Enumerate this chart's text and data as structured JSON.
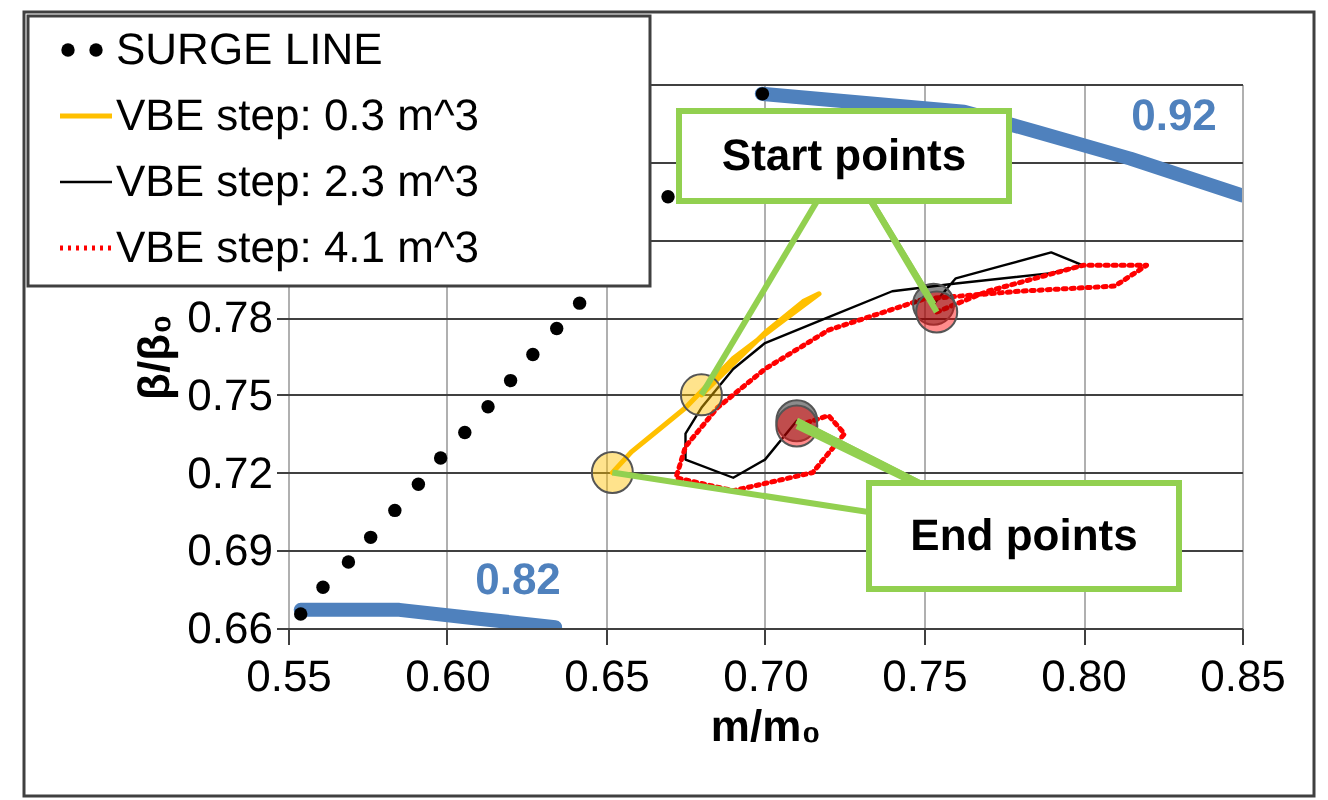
{
  "chart_data": {
    "type": "line",
    "xlabel": "m/m₀",
    "ylabel": "β/β₀",
    "xlim": [
      0.55,
      0.85
    ],
    "ylim": [
      0.66,
      0.87
    ],
    "xticks": [
      0.55,
      {
        "value": 0.6,
        "label": "0.60"
      },
      0.65,
      {
        "value": 0.7,
        "label": "0.70"
      },
      0.75,
      {
        "value": 0.8,
        "label": "0.80"
      },
      0.85
    ],
    "yticks": [
      0.66,
      0.69,
      0.72,
      0.75,
      0.78,
      {
        "value": 0.81,
        "label": null
      },
      {
        "value": 0.84,
        "label": null
      },
      {
        "value": 0.87,
        "label": null
      }
    ],
    "grid": true,
    "legend": "top left",
    "series": [
      {
        "type": "line",
        "color": "#4f81bd",
        "x": [
          0.554,
          0.585,
          0.61,
          0.634
        ],
        "values": [
          0.667,
          0.667,
          0.6636,
          0.6603
        ]
      },
      {
        "type": "line",
        "color": "#4f81bd",
        "x": [
          0.699,
          0.7626,
          0.7856,
          0.8149,
          0.85
        ],
        "values": [
          0.8662,
          0.8593,
          0.8515,
          0.8412,
          0.827
        ]
      },
      {
        "type": "scatter",
        "name": "SURGE LINE",
        "color": "#000000",
        "marker": "circle",
        "x": [
          0.554,
          0.561,
          0.569,
          0.576,
          0.5836,
          0.591,
          0.598,
          0.6056,
          0.6129,
          0.62,
          0.627,
          0.6345,
          0.6417,
          0.6695,
          0.6992
        ],
        "values": [
          0.6654,
          0.6757,
          0.6855,
          0.695,
          0.7054,
          0.7155,
          0.7256,
          0.7355,
          0.7454,
          0.7555,
          0.7656,
          0.7756,
          0.7854,
          0.8265,
          0.8662
        ]
      },
      {
        "type": "line",
        "name": "VBE step: 0.3 m^3",
        "color": "#ffc000",
        "line_style": "solid",
        "marker": "none",
        "x": [
          0.68,
          0.69,
          0.7,
          0.712,
          0.717,
          0.705,
          0.69,
          0.675,
          0.665,
          0.658,
          0.652
        ],
        "values": [
          0.75,
          0.762,
          0.774,
          0.786,
          0.789,
          0.778,
          0.764,
          0.745,
          0.735,
          0.728,
          0.72
        ]
      },
      {
        "type": "line",
        "name": "VBE step: 2.3 m^3",
        "color": "#000000",
        "line_style": "solid",
        "marker": "none",
        "x": [
          0.753,
          0.76,
          0.775,
          0.79,
          0.8,
          0.79,
          0.76,
          0.74,
          0.72,
          0.7,
          0.69,
          0.68,
          0.675,
          0.675,
          0.69,
          0.7,
          0.71
        ],
        "values": [
          0.785,
          0.795,
          0.8,
          0.805,
          0.8,
          0.797,
          0.793,
          0.79,
          0.78,
          0.77,
          0.76,
          0.745,
          0.735,
          0.725,
          0.718,
          0.725,
          0.74
        ]
      },
      {
        "type": "line",
        "name": "VBE step: 4.1 m^3",
        "color": "#ff0000",
        "line_style": "dotted",
        "marker": "none",
        "x": [
          0.754,
          0.77,
          0.8,
          0.82,
          0.81,
          0.78,
          0.75,
          0.72,
          0.7,
          0.685,
          0.675,
          0.672,
          0.69,
          0.715,
          0.725,
          0.72,
          0.71
        ],
        "values": [
          0.782,
          0.79,
          0.8,
          0.8,
          0.792,
          0.79,
          0.787,
          0.775,
          0.76,
          0.745,
          0.73,
          0.718,
          0.713,
          0.72,
          0.735,
          0.742,
          0.738
        ]
      }
    ],
    "annotations": [
      "0.82",
      "0.92",
      {
        "text": "Start points",
        "x": 0.753,
        "y": 0.785
      },
      {
        "text": "End points",
        "x": 0.71,
        "y": 0.74
      }
    ]
  }
}
